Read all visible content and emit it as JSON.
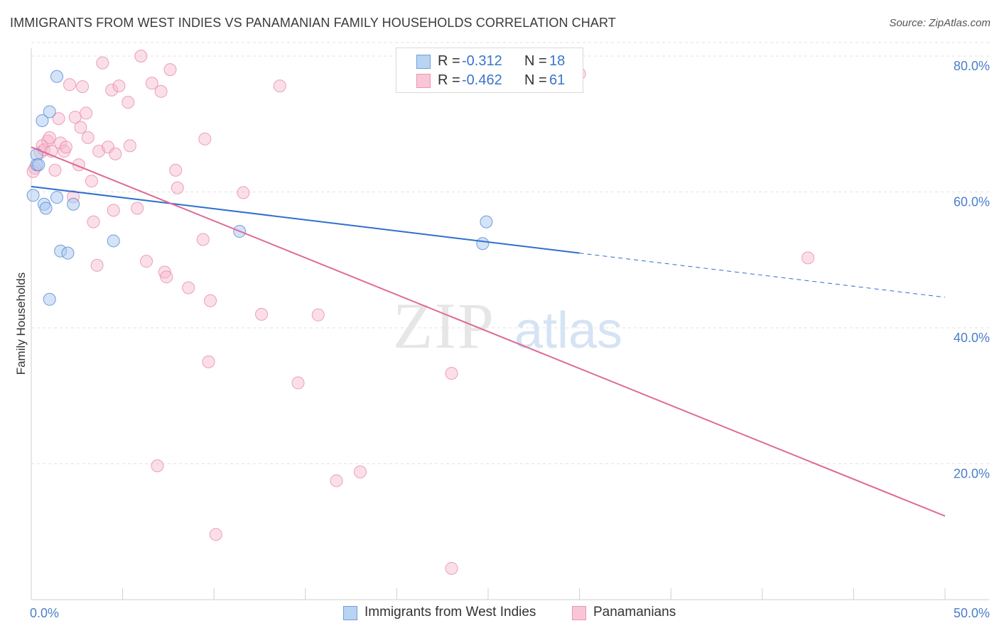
{
  "title": "IMMIGRANTS FROM WEST INDIES VS PANAMANIAN FAMILY HOUSEHOLDS CORRELATION CHART",
  "source": "Source: ZipAtlas.com",
  "watermark": {
    "zip": "ZIP",
    "atlas": "atlas"
  },
  "legend_top": [
    {
      "r_label": "R =",
      "r_value": "-0.312",
      "n_label": "N =",
      "n_value": "18"
    },
    {
      "r_label": "R =",
      "r_value": "-0.462",
      "n_label": "N =",
      "n_value": "61"
    }
  ],
  "legend_bottom": [
    {
      "label": "Immigrants from West Indies"
    },
    {
      "label": "Panamanians"
    }
  ],
  "chart_data": {
    "type": "scatter",
    "title": "IMMIGRANTS FROM WEST INDIES VS PANAMANIAN FAMILY HOUSEHOLDS CORRELATION CHART",
    "xlabel": "",
    "ylabel": "Family Households",
    "xlim": [
      0,
      50
    ],
    "ylim": [
      0,
      82
    ],
    "x_tick_labels": [
      "0.0%",
      "50.0%"
    ],
    "y_ticks": [
      {
        "value": 20,
        "label": "20.0%"
      },
      {
        "value": 40,
        "label": "40.0%"
      },
      {
        "value": 60,
        "label": "60.0%"
      },
      {
        "value": 80,
        "label": "80.0%"
      }
    ],
    "grid": "horizontal-dashed",
    "colors": {
      "west_indies_fill": "#a9c8f0",
      "west_indies_stroke": "#5b8ed6",
      "west_indies_line": "#2f6fcf",
      "panamanians_fill": "#f7b9cd",
      "panamanians_stroke": "#e88aa8",
      "panamanians_line": "#e06a96",
      "tick_text": "#4a7fc9"
    },
    "series": [
      {
        "name": "Immigrants from West Indies",
        "r": -0.312,
        "n": 18,
        "trend": {
          "x0": 0,
          "y0": 60.8,
          "x1": 30,
          "y1": 51.0,
          "dash_x1": 50,
          "dash_y1": 44.5
        },
        "points": [
          [
            0.1,
            59.5
          ],
          [
            0.3,
            65.5
          ],
          [
            0.3,
            64.0
          ],
          [
            0.4,
            64.0
          ],
          [
            0.6,
            70.5
          ],
          [
            0.7,
            58.2
          ],
          [
            0.8,
            57.6
          ],
          [
            1.0,
            71.8
          ],
          [
            1.0,
            44.2
          ],
          [
            1.4,
            59.2
          ],
          [
            1.4,
            77.0
          ],
          [
            1.6,
            51.3
          ],
          [
            2.0,
            51.0
          ],
          [
            2.3,
            58.2
          ],
          [
            4.5,
            52.8
          ],
          [
            11.4,
            54.2
          ],
          [
            24.7,
            52.4
          ],
          [
            24.9,
            55.6
          ]
        ]
      },
      {
        "name": "Panamanians",
        "r": -0.462,
        "n": 61,
        "trend": {
          "x0": 0,
          "y0": 66.6,
          "x1": 50,
          "y1": 12.3
        },
        "points": [
          [
            0.2,
            63.5
          ],
          [
            0.5,
            65.8
          ],
          [
            0.6,
            66.8
          ],
          [
            0.7,
            66.2
          ],
          [
            0.9,
            67.5
          ],
          [
            1.0,
            68.0
          ],
          [
            1.1,
            66.0
          ],
          [
            1.3,
            63.2
          ],
          [
            1.5,
            70.8
          ],
          [
            1.6,
            67.2
          ],
          [
            1.8,
            66.0
          ],
          [
            1.9,
            66.6
          ],
          [
            2.1,
            75.8
          ],
          [
            2.3,
            59.3
          ],
          [
            2.4,
            71.0
          ],
          [
            2.6,
            64.0
          ],
          [
            2.7,
            69.5
          ],
          [
            2.8,
            75.5
          ],
          [
            3.0,
            71.6
          ],
          [
            3.1,
            68.0
          ],
          [
            3.3,
            61.6
          ],
          [
            3.4,
            55.6
          ],
          [
            3.6,
            49.2
          ],
          [
            3.7,
            66.0
          ],
          [
            3.9,
            79.0
          ],
          [
            4.2,
            66.6
          ],
          [
            4.4,
            75.0
          ],
          [
            4.5,
            57.3
          ],
          [
            4.6,
            65.6
          ],
          [
            4.8,
            75.6
          ],
          [
            5.3,
            73.2
          ],
          [
            5.4,
            66.8
          ],
          [
            5.8,
            57.6
          ],
          [
            6.0,
            80.0
          ],
          [
            6.3,
            49.8
          ],
          [
            6.6,
            76.0
          ],
          [
            6.9,
            19.7
          ],
          [
            7.1,
            74.8
          ],
          [
            7.3,
            48.2
          ],
          [
            7.4,
            47.5
          ],
          [
            7.6,
            78.0
          ],
          [
            7.9,
            63.2
          ],
          [
            8.0,
            60.6
          ],
          [
            8.6,
            45.9
          ],
          [
            9.4,
            53.0
          ],
          [
            9.5,
            67.8
          ],
          [
            9.7,
            35.0
          ],
          [
            9.8,
            44.0
          ],
          [
            10.1,
            9.6
          ],
          [
            11.6,
            59.9
          ],
          [
            12.6,
            42.0
          ],
          [
            13.6,
            75.6
          ],
          [
            14.6,
            31.9
          ],
          [
            15.7,
            41.9
          ],
          [
            16.7,
            17.5
          ],
          [
            18.0,
            18.8
          ],
          [
            23.0,
            33.3
          ],
          [
            23.0,
            4.6
          ],
          [
            30.0,
            77.4
          ],
          [
            42.5,
            50.3
          ],
          [
            0.1,
            63.0
          ]
        ]
      }
    ]
  }
}
